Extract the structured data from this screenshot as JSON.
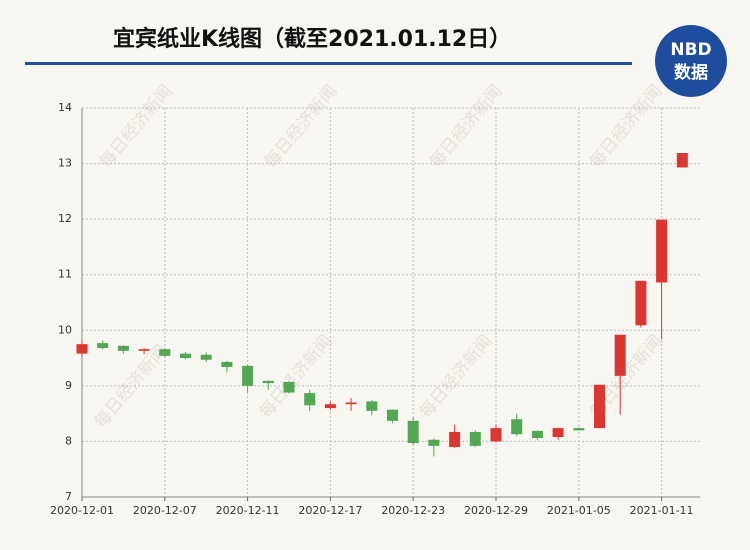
{
  "logo": {
    "top": "NBD",
    "bottom": "数据"
  },
  "watermark": "每日经济新闻",
  "chart_data": {
    "type": "candlestick",
    "title": "宜宾纸业K线图（截至2021.01.12日）",
    "categories": [
      "2020-12-01",
      null,
      null,
      null,
      "2020-12-07",
      null,
      null,
      null,
      "2020-12-11",
      null,
      null,
      null,
      "2020-12-17",
      null,
      null,
      null,
      "2020-12-23",
      null,
      null,
      null,
      "2020-12-29",
      null,
      null,
      null,
      "2021-01-05",
      null,
      null,
      null,
      "2021-01-11",
      null
    ],
    "open": [
      9.58,
      9.77,
      9.72,
      9.63,
      9.66,
      9.58,
      9.56,
      9.43,
      9.36,
      9.09,
      9.07,
      8.87,
      8.6,
      8.67,
      8.72,
      8.57,
      8.37,
      8.03,
      7.9,
      8.17,
      8.0,
      8.4,
      8.19,
      8.08,
      8.24,
      8.24,
      9.18,
      10.09,
      10.86,
      12.93
    ],
    "high": [
      9.8,
      9.82,
      9.73,
      9.68,
      9.68,
      9.61,
      9.6,
      9.45,
      9.38,
      9.1,
      9.08,
      8.93,
      8.72,
      8.78,
      8.75,
      8.58,
      8.43,
      8.05,
      8.3,
      8.2,
      8.3,
      8.5,
      8.2,
      8.25,
      8.25,
      9.02,
      9.92,
      10.89,
      11.99,
      13.19
    ],
    "low": [
      9.52,
      9.66,
      9.58,
      9.57,
      9.52,
      9.48,
      9.43,
      9.24,
      8.88,
      8.93,
      8.86,
      8.55,
      8.57,
      8.55,
      8.47,
      8.33,
      7.94,
      7.73,
      7.88,
      7.9,
      7.98,
      8.1,
      8.02,
      8.03,
      8.19,
      8.24,
      8.48,
      10.05,
      9.84,
      12.93
    ],
    "close": [
      9.75,
      9.68,
      9.63,
      9.66,
      9.54,
      9.5,
      9.47,
      9.34,
      9.0,
      9.05,
      8.88,
      8.65,
      8.67,
      8.7,
      8.55,
      8.37,
      7.97,
      7.92,
      8.17,
      7.92,
      8.24,
      8.13,
      8.06,
      8.24,
      8.2,
      9.02,
      9.92,
      10.89,
      11.99,
      13.19
    ],
    "up_color": "#d9372f",
    "down_color": "#52a852",
    "ylim": [
      7,
      14
    ],
    "yticks": [
      7,
      8,
      9,
      10,
      11,
      12,
      13,
      14
    ],
    "grid": true
  }
}
